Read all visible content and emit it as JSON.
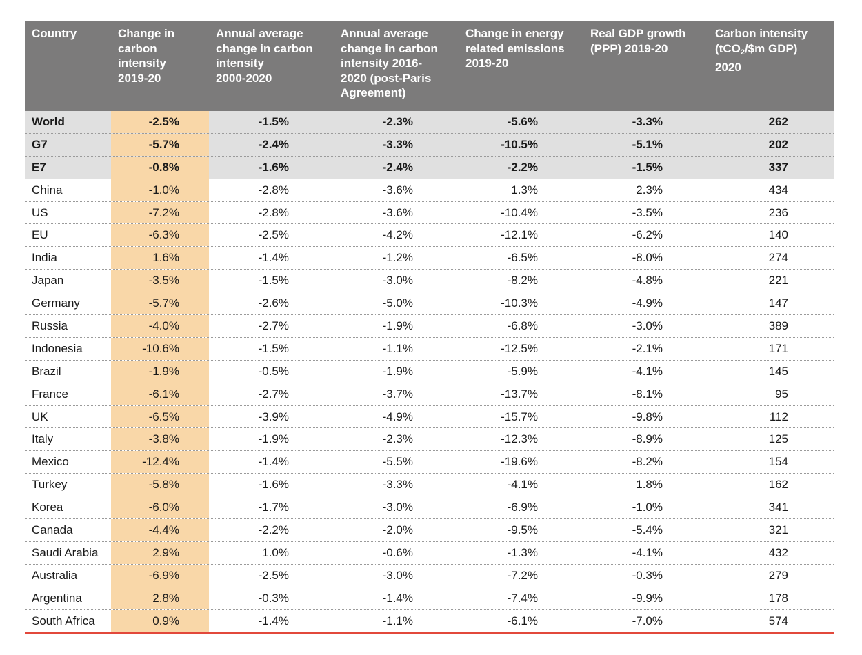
{
  "colors": {
    "header_bg": "#7c7b7b",
    "highlight_column": "#f9d7a8",
    "aggregate_row_bg": "#e0e0e0",
    "bottom_rule": "#e2483b"
  },
  "columns": [
    "Country",
    "Change in\ncarbon\nintensity\n2019-20",
    "Annual average\nchange in carbon\nintensity\n2000-2020",
    "Annual average\nchange in carbon\nintensity 2016-\n2020 (post-Paris\nAgreement)",
    "Change in energy\nrelated emissions\n2019-20",
    "Real GDP growth\n(PPP) 2019-20",
    "Carbon intensity\n(tCO2/$m GDP)\n2020"
  ],
  "rows": [
    [
      "World",
      "-2.5%",
      "-1.5%",
      "-2.3%",
      "-5.6%",
      "-3.3%",
      "262"
    ],
    [
      "G7",
      "-5.7%",
      "-2.4%",
      "-3.3%",
      "-10.5%",
      "-5.1%",
      "202"
    ],
    [
      "E7",
      "-0.8%",
      "-1.6%",
      "-2.4%",
      "-2.2%",
      "-1.5%",
      "337"
    ],
    [
      "China",
      "-1.0%",
      "-2.8%",
      "-3.6%",
      "1.3%",
      "2.3%",
      "434"
    ],
    [
      "US",
      "-7.2%",
      "-2.8%",
      "-3.6%",
      "-10.4%",
      "-3.5%",
      "236"
    ],
    [
      "EU",
      "-6.3%",
      "-2.5%",
      "-4.2%",
      "-12.1%",
      "-6.2%",
      "140"
    ],
    [
      "India",
      "1.6%",
      "-1.4%",
      "-1.2%",
      "-6.5%",
      "-8.0%",
      "274"
    ],
    [
      "Japan",
      "-3.5%",
      "-1.5%",
      "-3.0%",
      "-8.2%",
      "-4.8%",
      "221"
    ],
    [
      "Germany",
      "-5.7%",
      "-2.6%",
      "-5.0%",
      "-10.3%",
      "-4.9%",
      "147"
    ],
    [
      "Russia",
      "-4.0%",
      "-2.7%",
      "-1.9%",
      "-6.8%",
      "-3.0%",
      "389"
    ],
    [
      "Indonesia",
      "-10.6%",
      "-1.5%",
      "-1.1%",
      "-12.5%",
      "-2.1%",
      "171"
    ],
    [
      "Brazil",
      "-1.9%",
      "-0.5%",
      "-1.9%",
      "-5.9%",
      "-4.1%",
      "145"
    ],
    [
      "France",
      "-6.1%",
      "-2.7%",
      "-3.7%",
      "-13.7%",
      "-8.1%",
      "95"
    ],
    [
      "UK",
      "-6.5%",
      "-3.9%",
      "-4.9%",
      "-15.7%",
      "-9.8%",
      "112"
    ],
    [
      "Italy",
      "-3.8%",
      "-1.9%",
      "-2.3%",
      "-12.3%",
      "-8.9%",
      "125"
    ],
    [
      "Mexico",
      "-12.4%",
      "-1.4%",
      "-5.5%",
      "-19.6%",
      "-8.2%",
      "154"
    ],
    [
      "Turkey",
      "-5.8%",
      "-1.6%",
      "-3.3%",
      "-4.1%",
      "1.8%",
      "162"
    ],
    [
      "Korea",
      "-6.0%",
      "-1.7%",
      "-3.0%",
      "-6.9%",
      "-1.0%",
      "341"
    ],
    [
      "Canada",
      "-4.4%",
      "-2.2%",
      "-2.0%",
      "-9.5%",
      "-5.4%",
      "321"
    ],
    [
      "Saudi Arabia",
      "2.9%",
      "1.0%",
      "-0.6%",
      "-1.3%",
      "-4.1%",
      "432"
    ],
    [
      "Australia",
      "-6.9%",
      "-2.5%",
      "-3.0%",
      "-7.2%",
      "-0.3%",
      "279"
    ],
    [
      "Argentina",
      "2.8%",
      "-0.3%",
      "-1.4%",
      "-7.4%",
      "-9.9%",
      "178"
    ],
    [
      "South Africa",
      "0.9%",
      "-1.4%",
      "-1.1%",
      "-6.1%",
      "-7.0%",
      "574"
    ]
  ],
  "aggregate_rows": [
    "World",
    "G7",
    "E7"
  ]
}
